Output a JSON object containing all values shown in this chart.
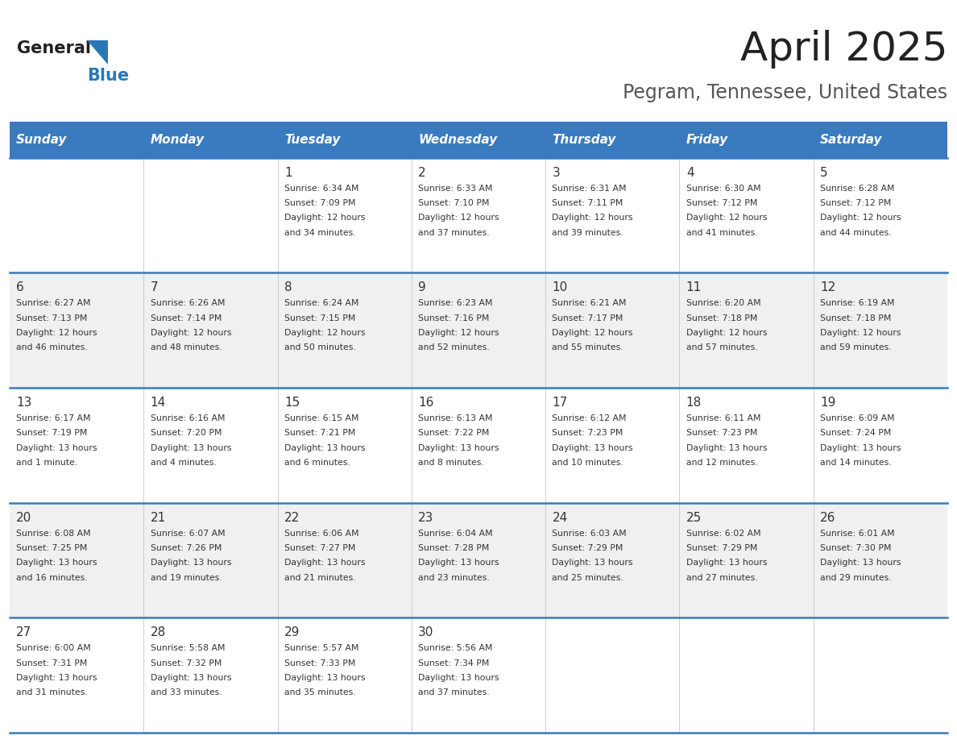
{
  "title": "April 2025",
  "subtitle": "Pegram, Tennessee, United States",
  "days_of_week": [
    "Sunday",
    "Monday",
    "Tuesday",
    "Wednesday",
    "Thursday",
    "Friday",
    "Saturday"
  ],
  "header_bg": "#3a7abf",
  "header_text": "#ffffff",
  "separator_color": "#3a7abf",
  "cell_text_color": "#333333",
  "title_color": "#222222",
  "subtitle_color": "#555555",
  "logo_general_color": "#222222",
  "logo_blue_color": "#2878b8",
  "calendar": [
    [
      {
        "day": null,
        "text": ""
      },
      {
        "day": null,
        "text": ""
      },
      {
        "day": 1,
        "text": "Sunrise: 6:34 AM\nSunset: 7:09 PM\nDaylight: 12 hours\nand 34 minutes."
      },
      {
        "day": 2,
        "text": "Sunrise: 6:33 AM\nSunset: 7:10 PM\nDaylight: 12 hours\nand 37 minutes."
      },
      {
        "day": 3,
        "text": "Sunrise: 6:31 AM\nSunset: 7:11 PM\nDaylight: 12 hours\nand 39 minutes."
      },
      {
        "day": 4,
        "text": "Sunrise: 6:30 AM\nSunset: 7:12 PM\nDaylight: 12 hours\nand 41 minutes."
      },
      {
        "day": 5,
        "text": "Sunrise: 6:28 AM\nSunset: 7:12 PM\nDaylight: 12 hours\nand 44 minutes."
      }
    ],
    [
      {
        "day": 6,
        "text": "Sunrise: 6:27 AM\nSunset: 7:13 PM\nDaylight: 12 hours\nand 46 minutes."
      },
      {
        "day": 7,
        "text": "Sunrise: 6:26 AM\nSunset: 7:14 PM\nDaylight: 12 hours\nand 48 minutes."
      },
      {
        "day": 8,
        "text": "Sunrise: 6:24 AM\nSunset: 7:15 PM\nDaylight: 12 hours\nand 50 minutes."
      },
      {
        "day": 9,
        "text": "Sunrise: 6:23 AM\nSunset: 7:16 PM\nDaylight: 12 hours\nand 52 minutes."
      },
      {
        "day": 10,
        "text": "Sunrise: 6:21 AM\nSunset: 7:17 PM\nDaylight: 12 hours\nand 55 minutes."
      },
      {
        "day": 11,
        "text": "Sunrise: 6:20 AM\nSunset: 7:18 PM\nDaylight: 12 hours\nand 57 minutes."
      },
      {
        "day": 12,
        "text": "Sunrise: 6:19 AM\nSunset: 7:18 PM\nDaylight: 12 hours\nand 59 minutes."
      }
    ],
    [
      {
        "day": 13,
        "text": "Sunrise: 6:17 AM\nSunset: 7:19 PM\nDaylight: 13 hours\nand 1 minute."
      },
      {
        "day": 14,
        "text": "Sunrise: 6:16 AM\nSunset: 7:20 PM\nDaylight: 13 hours\nand 4 minutes."
      },
      {
        "day": 15,
        "text": "Sunrise: 6:15 AM\nSunset: 7:21 PM\nDaylight: 13 hours\nand 6 minutes."
      },
      {
        "day": 16,
        "text": "Sunrise: 6:13 AM\nSunset: 7:22 PM\nDaylight: 13 hours\nand 8 minutes."
      },
      {
        "day": 17,
        "text": "Sunrise: 6:12 AM\nSunset: 7:23 PM\nDaylight: 13 hours\nand 10 minutes."
      },
      {
        "day": 18,
        "text": "Sunrise: 6:11 AM\nSunset: 7:23 PM\nDaylight: 13 hours\nand 12 minutes."
      },
      {
        "day": 19,
        "text": "Sunrise: 6:09 AM\nSunset: 7:24 PM\nDaylight: 13 hours\nand 14 minutes."
      }
    ],
    [
      {
        "day": 20,
        "text": "Sunrise: 6:08 AM\nSunset: 7:25 PM\nDaylight: 13 hours\nand 16 minutes."
      },
      {
        "day": 21,
        "text": "Sunrise: 6:07 AM\nSunset: 7:26 PM\nDaylight: 13 hours\nand 19 minutes."
      },
      {
        "day": 22,
        "text": "Sunrise: 6:06 AM\nSunset: 7:27 PM\nDaylight: 13 hours\nand 21 minutes."
      },
      {
        "day": 23,
        "text": "Sunrise: 6:04 AM\nSunset: 7:28 PM\nDaylight: 13 hours\nand 23 minutes."
      },
      {
        "day": 24,
        "text": "Sunrise: 6:03 AM\nSunset: 7:29 PM\nDaylight: 13 hours\nand 25 minutes."
      },
      {
        "day": 25,
        "text": "Sunrise: 6:02 AM\nSunset: 7:29 PM\nDaylight: 13 hours\nand 27 minutes."
      },
      {
        "day": 26,
        "text": "Sunrise: 6:01 AM\nSunset: 7:30 PM\nDaylight: 13 hours\nand 29 minutes."
      }
    ],
    [
      {
        "day": 27,
        "text": "Sunrise: 6:00 AM\nSunset: 7:31 PM\nDaylight: 13 hours\nand 31 minutes."
      },
      {
        "day": 28,
        "text": "Sunrise: 5:58 AM\nSunset: 7:32 PM\nDaylight: 13 hours\nand 33 minutes."
      },
      {
        "day": 29,
        "text": "Sunrise: 5:57 AM\nSunset: 7:33 PM\nDaylight: 13 hours\nand 35 minutes."
      },
      {
        "day": 30,
        "text": "Sunrise: 5:56 AM\nSunset: 7:34 PM\nDaylight: 13 hours\nand 37 minutes."
      },
      {
        "day": null,
        "text": ""
      },
      {
        "day": null,
        "text": ""
      },
      {
        "day": null,
        "text": ""
      }
    ]
  ]
}
